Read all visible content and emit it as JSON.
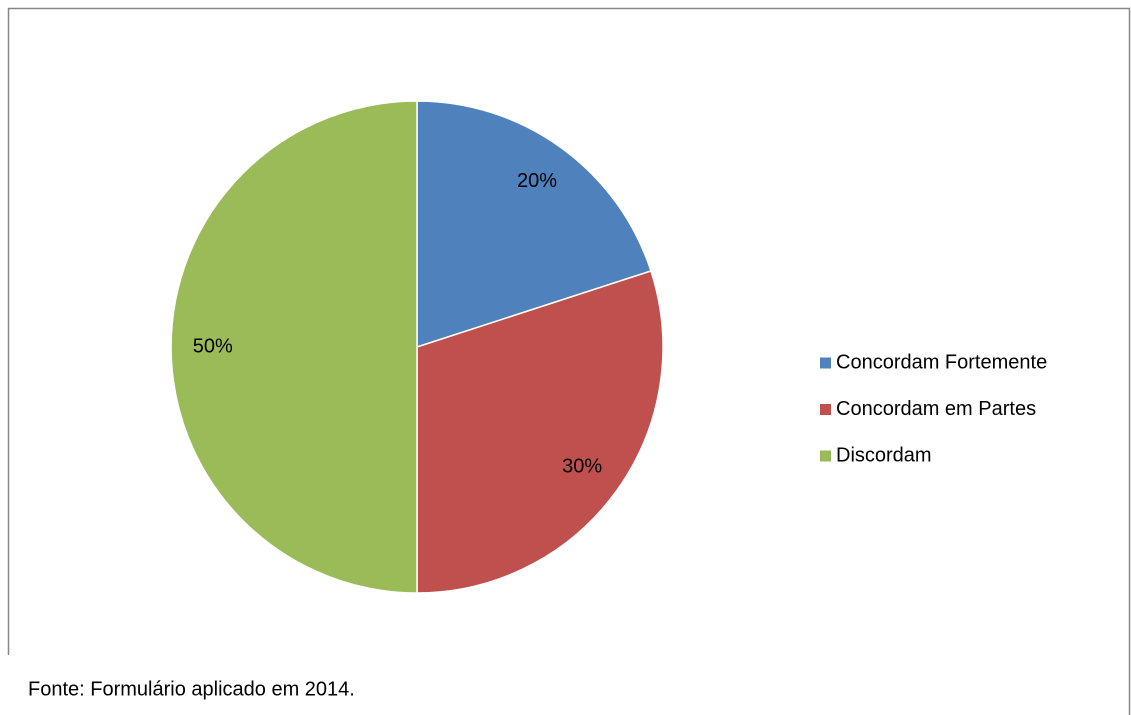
{
  "chart_data": {
    "type": "pie",
    "categories": [
      "Concordam Fortemente",
      "Concordam em Partes",
      "Discordam"
    ],
    "values": [
      20,
      30,
      50
    ],
    "value_labels": [
      "20%",
      "30%",
      "50%"
    ],
    "colors": [
      "#4f81bd",
      "#c0504d",
      "#9bbb59"
    ],
    "legend": "right",
    "source": "Fonte: Formulário aplicado em 2014."
  }
}
